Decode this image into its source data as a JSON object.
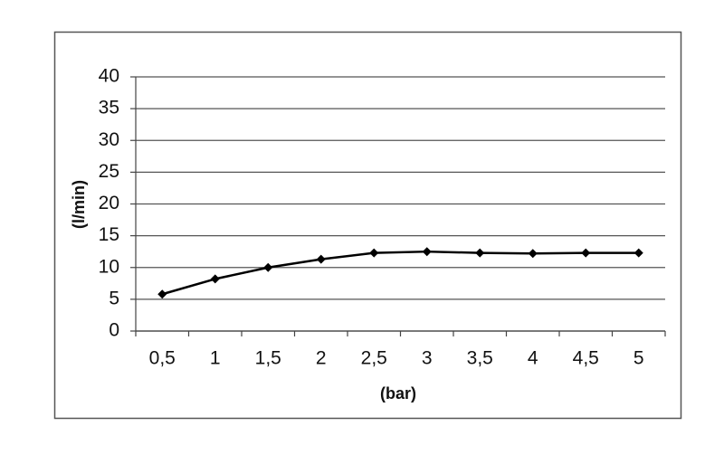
{
  "chart_data": {
    "type": "line",
    "x_label": "(bar)",
    "y_label": "(l/min)",
    "categories": [
      "0,5",
      "1",
      "1,5",
      "2",
      "2,5",
      "3",
      "3,5",
      "4",
      "4,5",
      "5"
    ],
    "values": [
      5.8,
      8.2,
      10,
      11.3,
      12.3,
      12.5,
      12.3,
      12.2,
      12.3,
      12.3
    ],
    "color": "#000000",
    "ylim": [
      0,
      40
    ],
    "yticks": [
      0,
      5,
      10,
      15,
      20,
      25,
      30,
      35,
      40
    ],
    "grid": true
  }
}
